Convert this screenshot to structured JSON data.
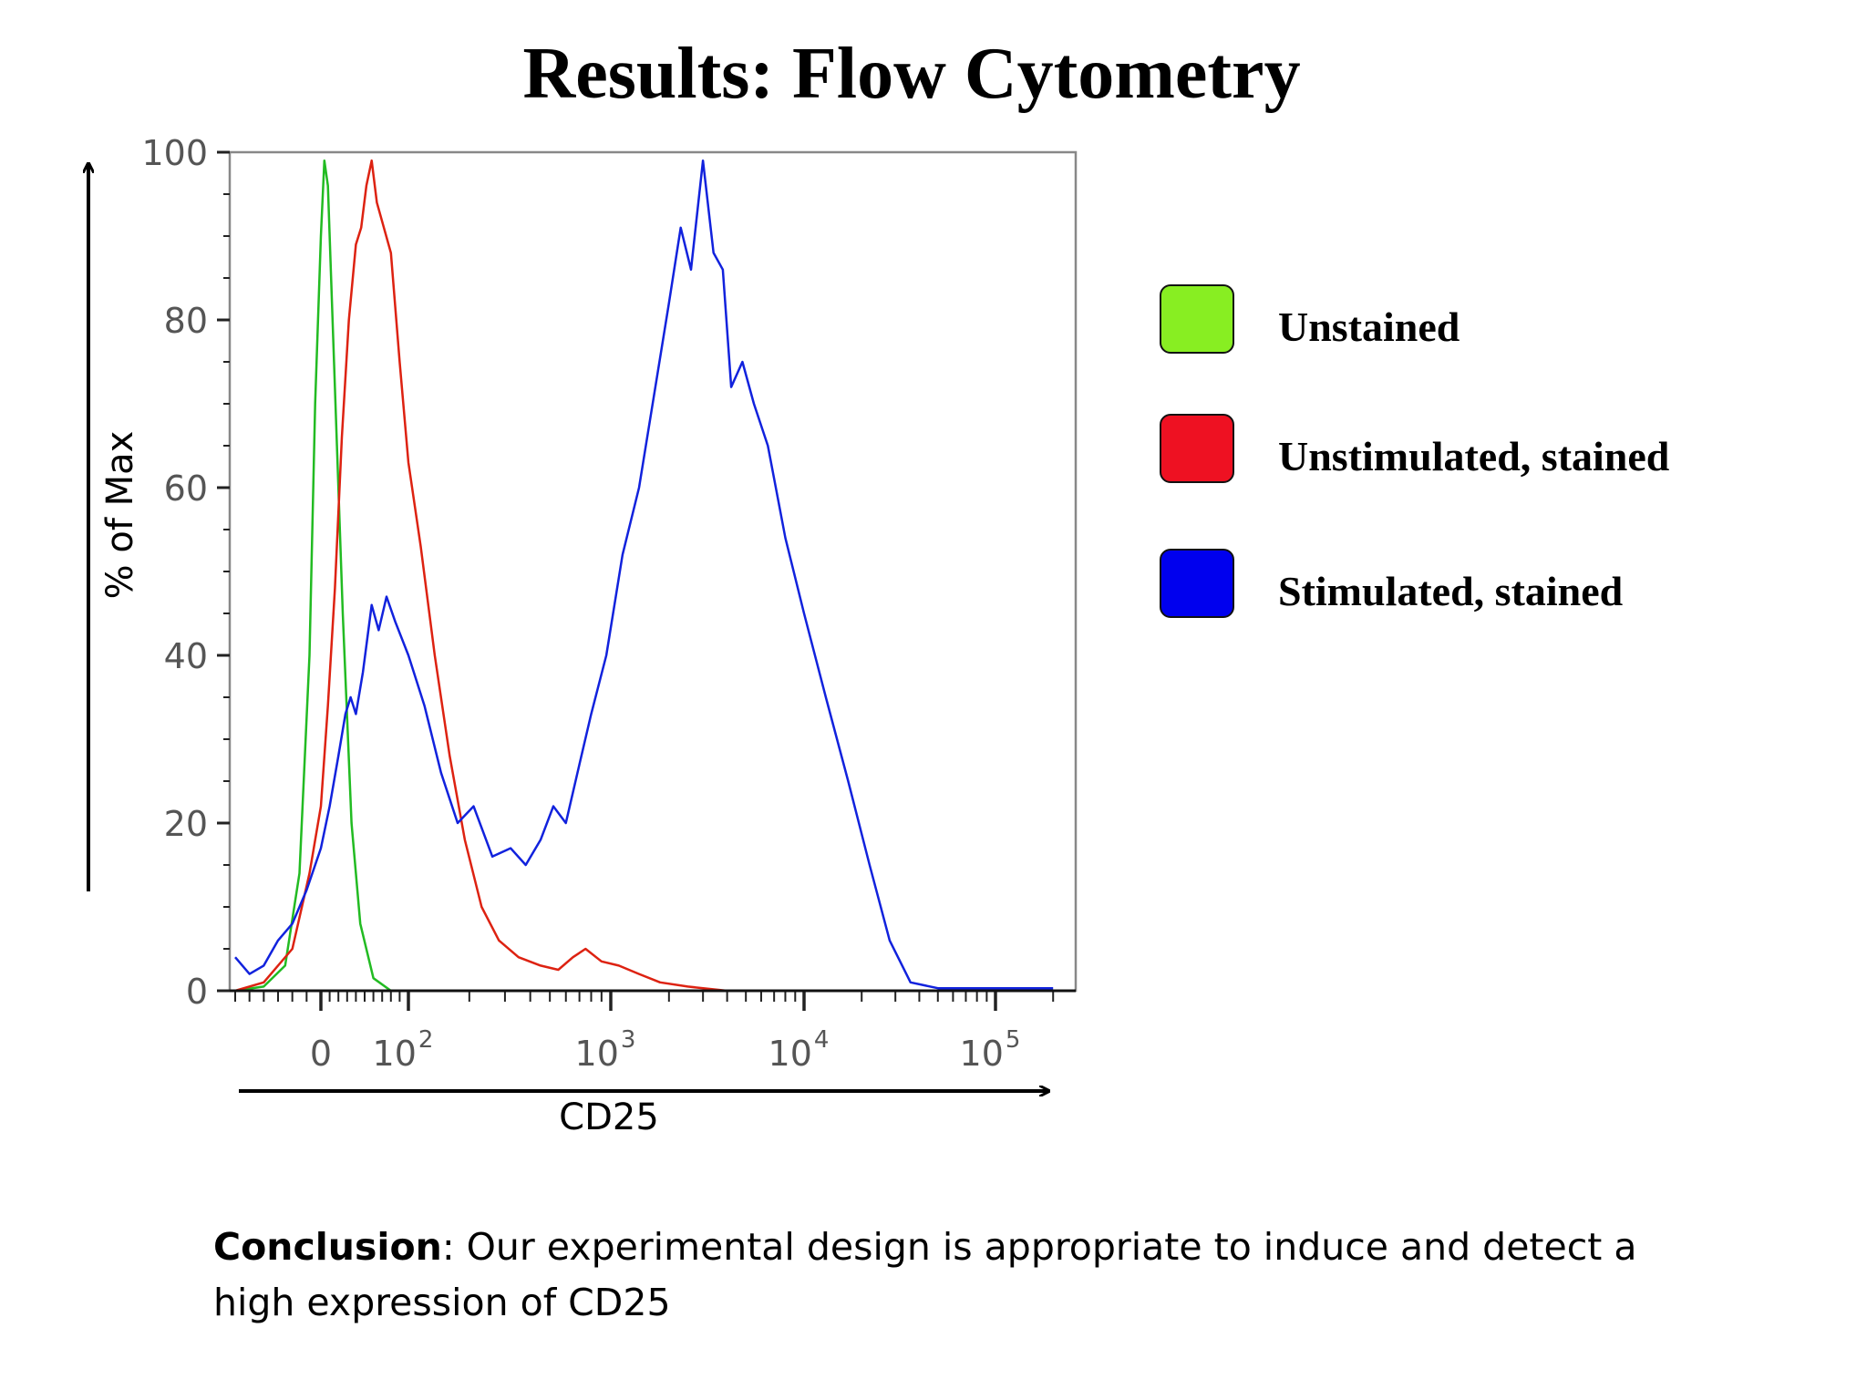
{
  "slide": {
    "title": "Results: Flow Cytometry",
    "conclusion_heading": "Conclusion",
    "conclusion_text": ": Our experimental design is appropriate to induce and detect a high expression of CD25"
  },
  "chart_data": {
    "type": "line",
    "xlabel": "CD25",
    "ylabel": "% of Max",
    "x_scale": "biexponential",
    "xlim": [
      -60,
      200000
    ],
    "ylim": [
      0,
      100
    ],
    "y_ticks": [
      0,
      20,
      40,
      60,
      80,
      100
    ],
    "x_ticks": [
      {
        "value": 0,
        "label": "0",
        "exp": ""
      },
      {
        "value": 100,
        "label": "10",
        "exp": "2"
      },
      {
        "value": 1000,
        "label": "10",
        "exp": "3"
      },
      {
        "value": 10000,
        "label": "10",
        "exp": "4"
      },
      {
        "value": 100000,
        "label": "10",
        "exp": "5"
      }
    ],
    "grid": false,
    "legend_position": "right",
    "series": [
      {
        "name": "Unstained",
        "color": "#22bb22",
        "swatch": "#88ee22",
        "points": [
          [
            -60,
            0
          ],
          [
            -40,
            0.5
          ],
          [
            -25,
            3
          ],
          [
            -15,
            14
          ],
          [
            -8,
            40
          ],
          [
            -4,
            70
          ],
          [
            0,
            90
          ],
          [
            4,
            99
          ],
          [
            8,
            96
          ],
          [
            15,
            75
          ],
          [
            25,
            45
          ],
          [
            35,
            20
          ],
          [
            45,
            8
          ],
          [
            60,
            1.5
          ],
          [
            80,
            0
          ],
          [
            200000,
            0
          ]
        ]
      },
      {
        "name": "Unstimulated, stained",
        "color": "#dd2211",
        "swatch": "#ee1122",
        "points": [
          [
            -60,
            0
          ],
          [
            -40,
            1
          ],
          [
            -20,
            5
          ],
          [
            -8,
            14
          ],
          [
            0,
            22
          ],
          [
            8,
            34
          ],
          [
            16,
            48
          ],
          [
            24,
            66
          ],
          [
            32,
            80
          ],
          [
            40,
            89
          ],
          [
            46,
            91
          ],
          [
            52,
            96
          ],
          [
            58,
            99
          ],
          [
            64,
            94
          ],
          [
            72,
            91
          ],
          [
            80,
            88
          ],
          [
            90,
            75
          ],
          [
            100,
            63
          ],
          [
            115,
            53
          ],
          [
            135,
            40
          ],
          [
            160,
            28
          ],
          [
            190,
            18
          ],
          [
            230,
            10
          ],
          [
            280,
            6
          ],
          [
            350,
            4
          ],
          [
            450,
            3
          ],
          [
            550,
            2.5
          ],
          [
            650,
            4
          ],
          [
            750,
            5
          ],
          [
            900,
            3.5
          ],
          [
            1100,
            3
          ],
          [
            1400,
            2
          ],
          [
            1800,
            1
          ],
          [
            2500,
            0.5
          ],
          [
            4000,
            0
          ],
          [
            200000,
            0
          ]
        ]
      },
      {
        "name": "Stimulated, stained",
        "color": "#1122dd",
        "swatch": "#0000ee",
        "points": [
          [
            -60,
            4
          ],
          [
            -50,
            2
          ],
          [
            -40,
            3
          ],
          [
            -30,
            6
          ],
          [
            -20,
            8
          ],
          [
            -10,
            12
          ],
          [
            0,
            17
          ],
          [
            10,
            22
          ],
          [
            20,
            28
          ],
          [
            28,
            33
          ],
          [
            34,
            35
          ],
          [
            40,
            33
          ],
          [
            48,
            38
          ],
          [
            58,
            46
          ],
          [
            66,
            43
          ],
          [
            75,
            47
          ],
          [
            85,
            44
          ],
          [
            100,
            40
          ],
          [
            120,
            34
          ],
          [
            145,
            26
          ],
          [
            175,
            20
          ],
          [
            210,
            22
          ],
          [
            260,
            16
          ],
          [
            320,
            17
          ],
          [
            380,
            15
          ],
          [
            450,
            18
          ],
          [
            520,
            22
          ],
          [
            600,
            20
          ],
          [
            700,
            27
          ],
          [
            800,
            33
          ],
          [
            950,
            40
          ],
          [
            1150,
            52
          ],
          [
            1400,
            60
          ],
          [
            1700,
            72
          ],
          [
            2000,
            82
          ],
          [
            2300,
            91
          ],
          [
            2600,
            86
          ],
          [
            3000,
            99
          ],
          [
            3400,
            88
          ],
          [
            3800,
            86
          ],
          [
            4200,
            72
          ],
          [
            4800,
            75
          ],
          [
            5500,
            70
          ],
          [
            6500,
            65
          ],
          [
            8000,
            54
          ],
          [
            10000,
            45
          ],
          [
            13000,
            35
          ],
          [
            17000,
            25
          ],
          [
            22000,
            15
          ],
          [
            28000,
            6
          ],
          [
            36000,
            1
          ],
          [
            50000,
            0.3
          ],
          [
            200000,
            0.3
          ]
        ]
      }
    ]
  }
}
